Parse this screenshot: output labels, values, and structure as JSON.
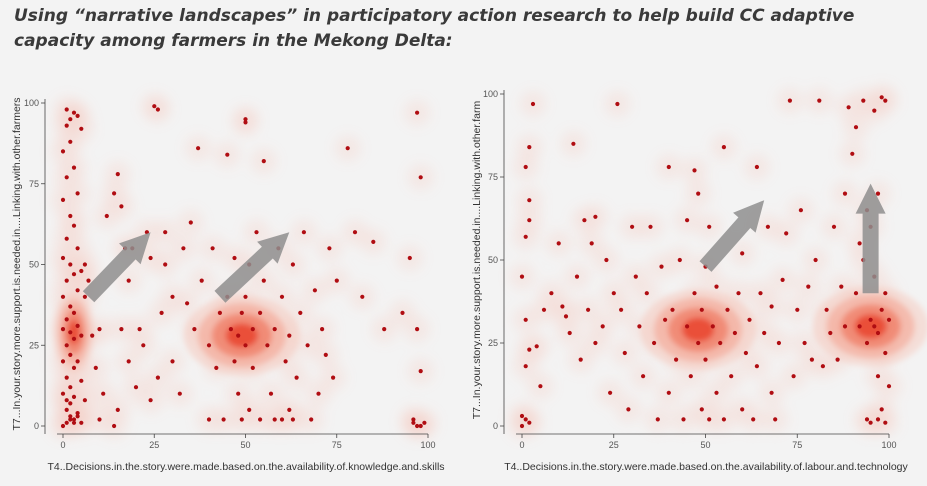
{
  "title": "Using “narrative landscapes” in participatory action research to help build CC adaptive capacity among farmers in the Mekong Delta:",
  "colors": {
    "point": "#b00d12",
    "density": "#e8402a",
    "arrow": "#8e8e8e",
    "axis": "#444444"
  },
  "chart_data": [
    {
      "type": "scatter",
      "xlabel": "T4..Decisions.in.the.story.were.made.based.on.the.availability.of.knowledge.and.skills",
      "ylabel": "T7...In.your.story.more.support.is.needed.in....Linking.with.other.farmers",
      "xlim": [
        0,
        100
      ],
      "ylim": [
        0,
        100
      ],
      "xticks": [
        "0",
        "25",
        "50",
        "75",
        "100"
      ],
      "yticks": [
        "0",
        "25",
        "50",
        "75",
        "100"
      ],
      "grid": false,
      "overlay": "density contours (red) with grey arrows",
      "density_peaks": [
        {
          "x": 3,
          "y": 29
        },
        {
          "x": 49,
          "y": 28
        }
      ],
      "arrows": [
        {
          "from": [
            7,
            40
          ],
          "to": [
            24,
            60
          ]
        },
        {
          "from": [
            43,
            40
          ],
          "to": [
            62,
            60
          ]
        }
      ],
      "points": [
        [
          0,
          0
        ],
        [
          1,
          1
        ],
        [
          2,
          3
        ],
        [
          3,
          2
        ],
        [
          4,
          4
        ],
        [
          1,
          5
        ],
        [
          2,
          7
        ],
        [
          3,
          9
        ],
        [
          0,
          10
        ],
        [
          2,
          12
        ],
        [
          1,
          15
        ],
        [
          3,
          18
        ],
        [
          0,
          20
        ],
        [
          2,
          22
        ],
        [
          1,
          25
        ],
        [
          3,
          27
        ],
        [
          2,
          29
        ],
        [
          0,
          30
        ],
        [
          4,
          31
        ],
        [
          1,
          33
        ],
        [
          3,
          35
        ],
        [
          2,
          37
        ],
        [
          0,
          40
        ],
        [
          4,
          42
        ],
        [
          1,
          45
        ],
        [
          3,
          47
        ],
        [
          2,
          50
        ],
        [
          0,
          52
        ],
        [
          4,
          55
        ],
        [
          1,
          58
        ],
        [
          3,
          62
        ],
        [
          2,
          65
        ],
        [
          0,
          70
        ],
        [
          4,
          72
        ],
        [
          1,
          77
        ],
        [
          3,
          80
        ],
        [
          2,
          88
        ],
        [
          1,
          93
        ],
        [
          2,
          95
        ],
        [
          3,
          97
        ],
        [
          1,
          98
        ],
        [
          4,
          96
        ],
        [
          5,
          92
        ],
        [
          0,
          85
        ],
        [
          6,
          50
        ],
        [
          5,
          48
        ],
        [
          7,
          45
        ],
        [
          6,
          40
        ],
        [
          5,
          28
        ],
        [
          4,
          20
        ],
        [
          5,
          14
        ],
        [
          6,
          8
        ],
        [
          5,
          1
        ],
        [
          2,
          2
        ],
        [
          3,
          1
        ],
        [
          4,
          3
        ],
        [
          1,
          8
        ],
        [
          8,
          28
        ],
        [
          10,
          30
        ],
        [
          9,
          18
        ],
        [
          11,
          10
        ],
        [
          10,
          2
        ],
        [
          14,
          0
        ],
        [
          15,
          5
        ],
        [
          16,
          30
        ],
        [
          17,
          55
        ],
        [
          18,
          45
        ],
        [
          14,
          72
        ],
        [
          12,
          65
        ],
        [
          15,
          78
        ],
        [
          16,
          68
        ],
        [
          18,
          20
        ],
        [
          20,
          12
        ],
        [
          21,
          30
        ],
        [
          22,
          25
        ],
        [
          19,
          55
        ],
        [
          23,
          60
        ],
        [
          24,
          52
        ],
        [
          26,
          98
        ],
        [
          25,
          99
        ],
        [
          28,
          60
        ],
        [
          27,
          35
        ],
        [
          28,
          50
        ],
        [
          26,
          15
        ],
        [
          24,
          8
        ],
        [
          30,
          20
        ],
        [
          30,
          40
        ],
        [
          32,
          10
        ],
        [
          33,
          55
        ],
        [
          34,
          38
        ],
        [
          35,
          63
        ],
        [
          36,
          30
        ],
        [
          37,
          86
        ],
        [
          38,
          45
        ],
        [
          40,
          25
        ],
        [
          40,
          2
        ],
        [
          41,
          55
        ],
        [
          42,
          18
        ],
        [
          43,
          35
        ],
        [
          44,
          2
        ],
        [
          45,
          84
        ],
        [
          45,
          40
        ],
        [
          46,
          30
        ],
        [
          47,
          20
        ],
        [
          47,
          52
        ],
        [
          48,
          28
        ],
        [
          48,
          10
        ],
        [
          49,
          35
        ],
        [
          49,
          2
        ],
        [
          50,
          95
        ],
        [
          50,
          94
        ],
        [
          50,
          40
        ],
        [
          50,
          25
        ],
        [
          51,
          5
        ],
        [
          51,
          50
        ],
        [
          52,
          30
        ],
        [
          52,
          18
        ],
        [
          53,
          60
        ],
        [
          54,
          2
        ],
        [
          54,
          35
        ],
        [
          55,
          45
        ],
        [
          55,
          82
        ],
        [
          56,
          25
        ],
        [
          57,
          10
        ],
        [
          58,
          30
        ],
        [
          58,
          2
        ],
        [
          59,
          55
        ],
        [
          60,
          40
        ],
        [
          60,
          2
        ],
        [
          61,
          20
        ],
        [
          62,
          5
        ],
        [
          62,
          28
        ],
        [
          63,
          50
        ],
        [
          63,
          2
        ],
        [
          64,
          15
        ],
        [
          65,
          35
        ],
        [
          66,
          60
        ],
        [
          67,
          25
        ],
        [
          68,
          2
        ],
        [
          69,
          42
        ],
        [
          70,
          10
        ],
        [
          71,
          30
        ],
        [
          72,
          22
        ],
        [
          73,
          55
        ],
        [
          74,
          15
        ],
        [
          75,
          45
        ],
        [
          78,
          86
        ],
        [
          80,
          60
        ],
        [
          82,
          40
        ],
        [
          85,
          57
        ],
        [
          88,
          30
        ],
        [
          93,
          35
        ],
        [
          95,
          52
        ],
        [
          96,
          1
        ],
        [
          96,
          2
        ],
        [
          97,
          0
        ],
        [
          97,
          97
        ],
        [
          97,
          30
        ],
        [
          98,
          77
        ],
        [
          98,
          17
        ],
        [
          99,
          1
        ],
        [
          98,
          0
        ]
      ]
    },
    {
      "type": "scatter",
      "xlabel": "T4..Decisions.in.the.story.were.made.based.on.the.availability.of.labour.and.technology",
      "ylabel": "T7...In.your.story.more.support.is.needed.in....Linking.with.other.farm",
      "xlim": [
        0,
        100
      ],
      "ylim": [
        0,
        100
      ],
      "xticks": [
        "0",
        "25",
        "50",
        "75",
        "100"
      ],
      "yticks": [
        "0",
        "25",
        "50",
        "75",
        "100"
      ],
      "grid": false,
      "overlay": "density contours (red) with grey arrows",
      "density_peaks": [
        {
          "x": 48,
          "y": 29
        },
        {
          "x": 95,
          "y": 30
        }
      ],
      "arrows": [
        {
          "from": [
            50,
            48
          ],
          "to": [
            66,
            68
          ]
        },
        {
          "from": [
            95,
            40
          ],
          "to": [
            95,
            73
          ]
        }
      ],
      "points": [
        [
          0,
          0
        ],
        [
          1,
          2
        ],
        [
          2,
          1
        ],
        [
          0,
          3
        ],
        [
          1,
          18
        ],
        [
          2,
          23
        ],
        [
          1,
          32
        ],
        [
          0,
          45
        ],
        [
          1,
          57
        ],
        [
          2,
          62
        ],
        [
          2,
          68
        ],
        [
          1,
          78
        ],
        [
          2,
          84
        ],
        [
          3,
          97
        ],
        [
          4,
          24
        ],
        [
          5,
          12
        ],
        [
          6,
          35
        ],
        [
          8,
          40
        ],
        [
          10,
          55
        ],
        [
          11,
          36
        ],
        [
          12,
          33
        ],
        [
          13,
          28
        ],
        [
          14,
          85
        ],
        [
          15,
          45
        ],
        [
          16,
          20
        ],
        [
          17,
          62
        ],
        [
          18,
          35
        ],
        [
          19,
          55
        ],
        [
          20,
          63
        ],
        [
          20,
          25
        ],
        [
          22,
          30
        ],
        [
          23,
          50
        ],
        [
          24,
          10
        ],
        [
          25,
          40
        ],
        [
          26,
          97
        ],
        [
          27,
          35
        ],
        [
          28,
          22
        ],
        [
          29,
          5
        ],
        [
          30,
          60
        ],
        [
          31,
          45
        ],
        [
          32,
          30
        ],
        [
          33,
          15
        ],
        [
          34,
          40
        ],
        [
          35,
          60
        ],
        [
          36,
          25
        ],
        [
          37,
          2
        ],
        [
          38,
          48
        ],
        [
          39,
          32
        ],
        [
          40,
          78
        ],
        [
          40,
          10
        ],
        [
          41,
          35
        ],
        [
          42,
          20
        ],
        [
          43,
          50
        ],
        [
          44,
          2
        ],
        [
          45,
          30
        ],
        [
          45,
          62
        ],
        [
          46,
          15
        ],
        [
          47,
          40
        ],
        [
          47,
          77
        ],
        [
          48,
          70
        ],
        [
          48,
          25
        ],
        [
          49,
          5
        ],
        [
          49,
          35
        ],
        [
          50,
          20
        ],
        [
          50,
          48
        ],
        [
          51,
          2
        ],
        [
          51,
          60
        ],
        [
          52,
          30
        ],
        [
          53,
          10
        ],
        [
          53,
          42
        ],
        [
          54,
          25
        ],
        [
          55,
          2
        ],
        [
          55,
          84
        ],
        [
          56,
          35
        ],
        [
          57,
          15
        ],
        [
          58,
          28
        ],
        [
          59,
          40
        ],
        [
          60,
          5
        ],
        [
          60,
          52
        ],
        [
          61,
          22
        ],
        [
          62,
          32
        ],
        [
          63,
          2
        ],
        [
          64,
          78
        ],
        [
          64,
          18
        ],
        [
          65,
          40
        ],
        [
          66,
          28
        ],
        [
          67,
          60
        ],
        [
          68,
          10
        ],
        [
          68,
          36
        ],
        [
          69,
          2
        ],
        [
          70,
          25
        ],
        [
          71,
          44
        ],
        [
          72,
          58
        ],
        [
          73,
          98
        ],
        [
          74,
          15
        ],
        [
          75,
          35
        ],
        [
          76,
          65
        ],
        [
          77,
          25
        ],
        [
          78,
          42
        ],
        [
          79,
          20
        ],
        [
          80,
          50
        ],
        [
          81,
          98
        ],
        [
          82,
          18
        ],
        [
          83,
          35
        ],
        [
          84,
          28
        ],
        [
          85,
          60
        ],
        [
          86,
          20
        ],
        [
          87,
          42
        ],
        [
          88,
          30
        ],
        [
          88,
          70
        ],
        [
          89,
          96
        ],
        [
          90,
          82
        ],
        [
          91,
          40
        ],
        [
          91,
          90
        ],
        [
          92,
          55
        ],
        [
          92,
          30
        ],
        [
          93,
          50
        ],
        [
          93,
          98
        ],
        [
          94,
          25
        ],
        [
          94,
          65
        ],
        [
          94,
          2
        ],
        [
          95,
          32
        ],
        [
          95,
          60
        ],
        [
          95,
          1
        ],
        [
          96,
          30
        ],
        [
          96,
          45
        ],
        [
          96,
          95
        ],
        [
          97,
          28
        ],
        [
          97,
          70
        ],
        [
          97,
          15
        ],
        [
          97,
          2
        ],
        [
          98,
          35
        ],
        [
          98,
          99
        ],
        [
          98,
          5
        ],
        [
          99,
          22
        ],
        [
          99,
          40
        ],
        [
          99,
          98
        ],
        [
          99,
          1
        ],
        [
          100,
          32
        ],
        [
          100,
          12
        ]
      ]
    }
  ]
}
